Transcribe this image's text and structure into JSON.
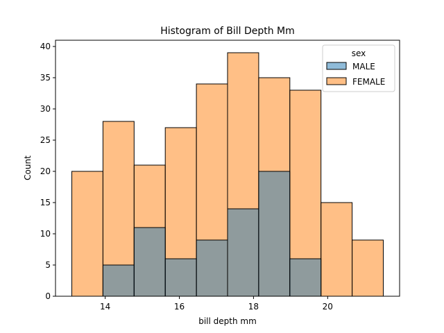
{
  "chart_data": {
    "type": "bar",
    "title": "Histogram of Bill Depth Mm",
    "xlabel": "bill depth mm",
    "ylabel": "Count",
    "xlim": [
      12.66,
      21.94
    ],
    "ylim": [
      0,
      41
    ],
    "bin_edges": [
      13.1,
      13.94,
      14.78,
      15.62,
      16.46,
      17.3,
      18.14,
      18.98,
      19.82,
      20.66,
      21.5
    ],
    "x_ticks": [
      14,
      16,
      18,
      20
    ],
    "y_ticks": [
      0,
      5,
      10,
      15,
      20,
      25,
      30,
      35,
      40
    ],
    "series": [
      {
        "name": "MALE",
        "color": "#1f77b4",
        "values": [
          0,
          5,
          11,
          6,
          9,
          14,
          20,
          6,
          0,
          0
        ]
      },
      {
        "name": "FEMALE",
        "color": "#ff7f0e",
        "values": [
          20,
          28,
          21,
          27,
          34,
          39,
          35,
          33,
          15,
          9
        ]
      }
    ],
    "legend": {
      "title": "sex",
      "placement": "top-right",
      "entries": [
        "MALE",
        "FEMALE"
      ]
    },
    "grid": false
  }
}
